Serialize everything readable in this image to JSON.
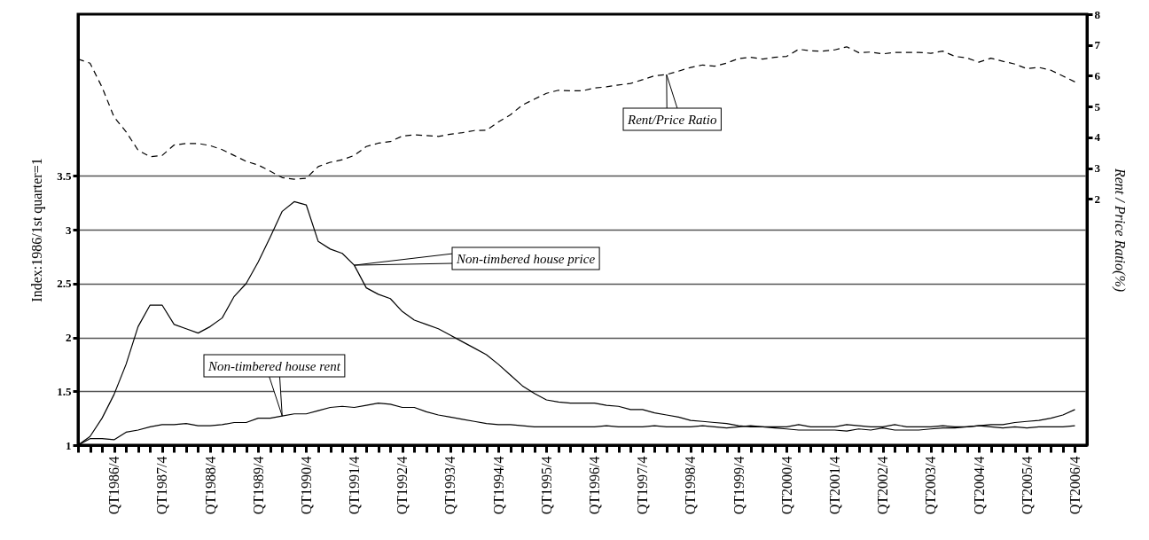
{
  "chart_data": {
    "type": "line",
    "categories": [
      null,
      null,
      null,
      "QT1986/4",
      null,
      null,
      null,
      "QT1987/4",
      null,
      null,
      null,
      "QT1988/4",
      null,
      null,
      null,
      "QT1989/4",
      null,
      null,
      null,
      "QT1990/4",
      null,
      null,
      null,
      "QT1991/4",
      null,
      null,
      null,
      "QT1992/4",
      null,
      null,
      null,
      "QT1993/4",
      null,
      null,
      null,
      "QT1994/4",
      null,
      null,
      null,
      "QT1995/4",
      null,
      null,
      null,
      "QT1996/4",
      null,
      null,
      null,
      "QT1997/4",
      null,
      null,
      null,
      "QT1998/4",
      null,
      null,
      null,
      "QT1999/4",
      null,
      null,
      null,
      "QT2000/4",
      null,
      null,
      null,
      "QT2001/4",
      null,
      null,
      null,
      "QT2002/4",
      null,
      null,
      null,
      "QT2003/4",
      null,
      null,
      null,
      "QT2004/4",
      null,
      null,
      null,
      "QT2005/4",
      null,
      null,
      null,
      "QT2006/4"
    ],
    "series": [
      {
        "name": "Non-timbered house price",
        "color": "#000000",
        "line_style": "solid",
        "values": [
          1.0,
          1.08,
          1.25,
          1.47,
          1.75,
          2.1,
          2.3,
          2.3,
          2.12,
          2.08,
          2.04,
          2.1,
          2.18,
          2.38,
          2.5,
          2.7,
          2.93,
          3.17,
          3.26,
          3.23,
          2.89,
          2.82,
          2.78,
          2.67,
          2.46,
          2.4,
          2.36,
          2.24,
          2.16,
          2.12,
          2.08,
          2.02,
          1.96,
          1.9,
          1.84,
          1.75,
          1.65,
          1.55,
          1.48,
          1.42,
          1.4,
          1.39,
          1.39,
          1.39,
          1.37,
          1.36,
          1.33,
          1.33,
          1.3,
          1.28,
          1.26,
          1.23,
          1.22,
          1.21,
          1.2,
          1.18,
          1.17,
          1.17,
          1.16,
          1.15,
          1.14,
          1.14,
          1.14,
          1.14,
          1.13,
          1.15,
          1.14,
          1.16,
          1.14,
          1.14,
          1.14,
          1.15,
          1.16,
          1.16,
          1.17,
          1.18,
          1.19,
          1.19,
          1.21,
          1.22,
          1.23,
          1.25,
          1.28,
          1.33
        ]
      },
      {
        "name": "Non-timbered house rent",
        "color": "#000000",
        "line_style": "solid",
        "values": [
          1.0,
          1.06,
          1.06,
          1.05,
          1.12,
          1.14,
          1.17,
          1.19,
          1.19,
          1.2,
          1.18,
          1.18,
          1.19,
          1.21,
          1.21,
          1.25,
          1.25,
          1.27,
          1.29,
          1.29,
          1.32,
          1.35,
          1.36,
          1.35,
          1.37,
          1.39,
          1.38,
          1.35,
          1.35,
          1.31,
          1.28,
          1.26,
          1.24,
          1.22,
          1.2,
          1.19,
          1.19,
          1.18,
          1.17,
          1.17,
          1.17,
          1.17,
          1.17,
          1.17,
          1.18,
          1.17,
          1.17,
          1.17,
          1.18,
          1.17,
          1.17,
          1.17,
          1.18,
          1.17,
          1.16,
          1.17,
          1.18,
          1.17,
          1.17,
          1.17,
          1.19,
          1.17,
          1.17,
          1.17,
          1.19,
          1.18,
          1.17,
          1.17,
          1.19,
          1.17,
          1.17,
          1.17,
          1.18,
          1.17,
          1.17,
          1.18,
          1.17,
          1.16,
          1.17,
          1.16,
          1.17,
          1.17,
          1.17,
          1.18
        ]
      },
      {
        "name": "Rent/Price Ratio",
        "color": "#000000",
        "line_style": "dashed",
        "axis": "y2",
        "values": [
          6.54,
          6.41,
          5.63,
          4.66,
          4.18,
          3.58,
          3.37,
          3.41,
          3.75,
          3.8,
          3.8,
          3.73,
          3.6,
          3.41,
          3.22,
          3.1,
          2.9,
          2.69,
          2.64,
          2.67,
          3.05,
          3.19,
          3.27,
          3.41,
          3.7,
          3.81,
          3.86,
          4.04,
          4.08,
          4.06,
          4.03,
          4.1,
          4.15,
          4.22,
          4.23,
          4.5,
          4.73,
          5.05,
          5.24,
          5.43,
          5.53,
          5.51,
          5.51,
          5.6,
          5.64,
          5.7,
          5.75,
          5.87,
          6.0,
          6.04,
          6.15,
          6.27,
          6.35,
          6.31,
          6.41,
          6.56,
          6.6,
          6.54,
          6.6,
          6.63,
          6.86,
          6.81,
          6.8,
          6.84,
          6.94,
          6.75,
          6.77,
          6.71,
          6.76,
          6.76,
          6.76,
          6.73,
          6.8,
          6.63,
          6.58,
          6.44,
          6.57,
          6.47,
          6.38,
          6.23,
          6.27,
          6.18,
          5.99,
          5.8
        ]
      }
    ],
    "ylabel": "Index:1986/1st quarter=1",
    "y2label": "Rent / Price Ratio(%)",
    "ylim": [
      1,
      5
    ],
    "yticks": [
      1,
      1.5,
      2,
      2.5,
      3,
      3.5
    ],
    "y2lim": [
      -6,
      8
    ],
    "y2ticks": [
      2,
      3,
      4,
      5,
      6,
      7,
      8
    ],
    "grid": "y"
  }
}
